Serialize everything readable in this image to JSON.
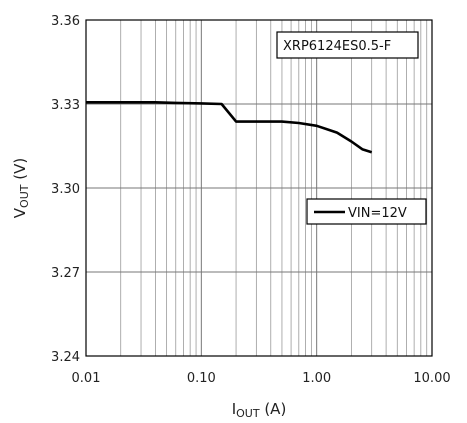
{
  "chart_data": {
    "type": "line",
    "title": "",
    "xscale": "log",
    "xlim": [
      0.01,
      10
    ],
    "ylim": [
      3.24,
      3.36
    ],
    "xticks": [
      "0.01",
      "0.10",
      "1.00",
      "10.00"
    ],
    "yticks": [
      "3.24",
      "3.27",
      "3.30",
      "3.33",
      "3.36"
    ],
    "xlabel": {
      "main": "I",
      "sub": "OUT",
      "unit": " (A)"
    },
    "ylabel": {
      "main": "V",
      "sub": "OUT",
      "unit": " (V)"
    },
    "annotation": "XRP6124ES0.5-F",
    "legend_position": "right",
    "series": [
      {
        "name": "VIN=12V",
        "color": "#000000",
        "x": [
          0.01,
          0.02,
          0.04,
          0.06,
          0.1,
          0.15,
          0.2,
          0.3,
          0.5,
          0.7,
          1.0,
          1.5,
          2.0,
          2.5,
          3.0
        ],
        "y": [
          3.3306,
          3.3306,
          3.3306,
          3.3304,
          3.3302,
          3.33,
          3.3237,
          3.3237,
          3.3237,
          3.3232,
          3.3222,
          3.3198,
          3.3166,
          3.3138,
          3.3128
        ]
      }
    ]
  }
}
